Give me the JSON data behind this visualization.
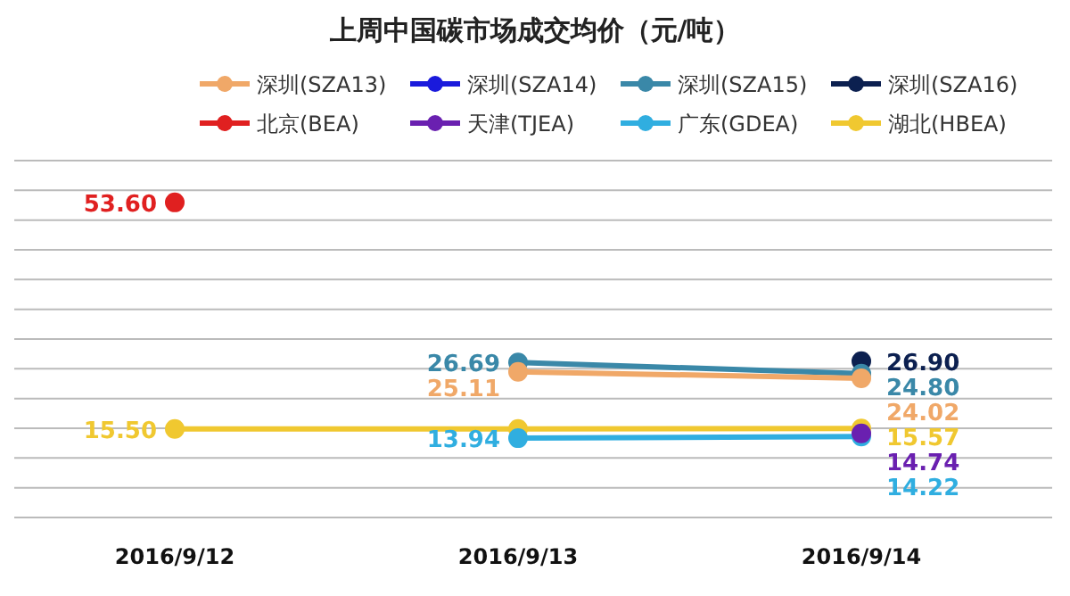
{
  "chart_data": {
    "type": "line",
    "title": "上周中国碳市场成交均价（元/吨）",
    "categories": [
      "2016/9/12",
      "2016/9/13",
      "2016/9/14"
    ],
    "series": [
      {
        "name": "深圳(SZA13)",
        "color": "#f0a868",
        "values": [
          null,
          25.11,
          24.02
        ],
        "value_labels": [
          null,
          "25.11",
          "24.02"
        ]
      },
      {
        "name": "深圳(SZA14)",
        "color": "#1a1adc",
        "values": [
          null,
          null,
          null
        ]
      },
      {
        "name": "深圳(SZA15)",
        "color": "#3a88a8",
        "values": [
          null,
          26.69,
          24.8
        ],
        "value_labels": [
          null,
          "26.69",
          "24.80"
        ]
      },
      {
        "name": "深圳(SZA16)",
        "color": "#0c2050",
        "values": [
          null,
          null,
          26.9
        ],
        "value_labels": [
          null,
          null,
          "26.90"
        ]
      },
      {
        "name": "北京(BEA)",
        "color": "#e02020",
        "values": [
          53.6,
          null,
          null
        ],
        "value_labels": [
          "53.60",
          null,
          null
        ]
      },
      {
        "name": "天津(TJEA)",
        "color": "#6a20b0",
        "values": [
          null,
          null,
          14.74
        ],
        "value_labels": [
          null,
          null,
          "14.74"
        ]
      },
      {
        "name": "广东(GDEA)",
        "color": "#30aee0",
        "values": [
          null,
          13.94,
          14.22
        ],
        "value_labels": [
          null,
          "13.94",
          "14.22"
        ]
      },
      {
        "name": "湖北(HBEA)",
        "color": "#f0c830",
        "values": [
          15.5,
          15.5,
          15.57
        ],
        "value_labels": [
          "15.50",
          null,
          "15.57"
        ]
      }
    ],
    "grid": true,
    "legend": "top",
    "marker": "circle",
    "line_style": "solid"
  }
}
